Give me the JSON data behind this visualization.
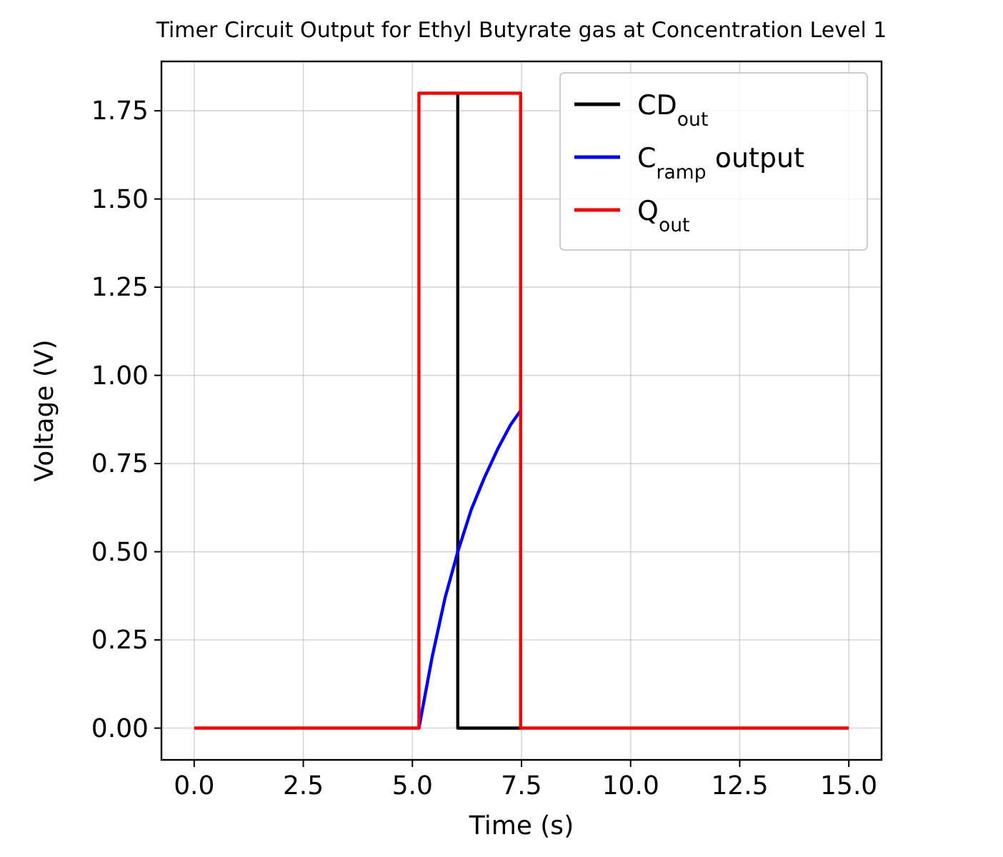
{
  "chart_data": {
    "type": "line",
    "title": "Timer Circuit Output for Ethyl Butyrate gas at Concentration Level 1",
    "xlabel": "Time (s)",
    "ylabel": "Voltage (V)",
    "xlim": [
      -0.75,
      15.75
    ],
    "xticks": [
      {
        "value": 0,
        "label": "0.0"
      },
      {
        "value": 2.5,
        "label": "2.5"
      },
      {
        "value": 5,
        "label": "5.0"
      },
      {
        "value": 7.5,
        "label": "7.5"
      },
      {
        "value": 10,
        "label": "10.0"
      },
      {
        "value": 12.5,
        "label": "12.5"
      },
      {
        "value": 15,
        "label": "15.0"
      }
    ],
    "ylim": [
      -0.09,
      1.89
    ],
    "yticks": [
      {
        "value": 0,
        "label": "0.00"
      },
      {
        "value": 0.25,
        "label": "0.25"
      },
      {
        "value": 0.5,
        "label": "0.50"
      },
      {
        "value": 0.75,
        "label": "0.75"
      },
      {
        "value": 1,
        "label": "1.00"
      },
      {
        "value": 1.25,
        "label": "1.25"
      },
      {
        "value": 1.5,
        "label": "1.50"
      },
      {
        "value": 1.75,
        "label": "1.75"
      }
    ],
    "grid": true,
    "legend": "top right",
    "line_style": "solid",
    "marker": "none",
    "series": [
      {
        "name": "CD$_{out}$",
        "color": "#000000",
        "x": [
          6.04,
          6.04,
          7.48
        ],
        "values": [
          1.8,
          0,
          0
        ]
      },
      {
        "name": "C$_{ramp}$ output",
        "color": "#0000ff",
        "x": [
          5.15,
          5.45,
          5.75,
          6.04,
          6.35,
          6.65,
          6.95,
          7.25,
          7.48
        ],
        "values": [
          0,
          0.2,
          0.37,
          0.5,
          0.62,
          0.71,
          0.79,
          0.86,
          0.9
        ]
      },
      {
        "name": "Q$_{out}$",
        "color": "#ff0000",
        "x": [
          0,
          5.15,
          5.15,
          7.48,
          7.48,
          15
        ],
        "values": [
          0,
          0,
          1.8,
          1.8,
          0,
          0
        ]
      }
    ]
  }
}
